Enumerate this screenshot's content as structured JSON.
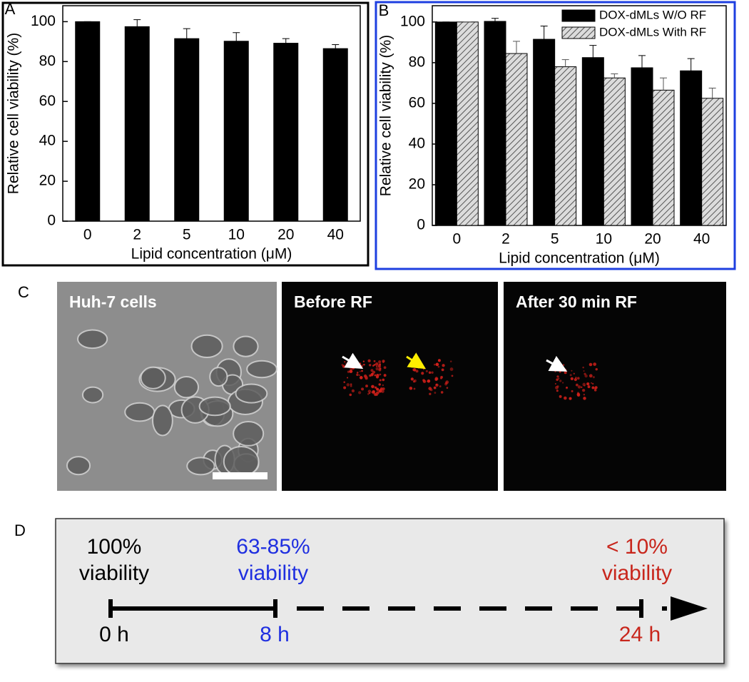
{
  "chart_data": [
    {
      "type": "bar",
      "panel_label": "A",
      "ylabel": "Relative cell viability (%)",
      "xlabel": "Lipid concentration (μM)",
      "categories": [
        "0",
        "2",
        "5",
        "10",
        "20",
        "40"
      ],
      "values": [
        100,
        97.5,
        91.5,
        90.2,
        89.2,
        86.5
      ],
      "errors": [
        0,
        3.5,
        5,
        4.3,
        2.3,
        2
      ],
      "color": "#000000",
      "ylim": [
        0,
        108
      ],
      "yticks": [
        0,
        20,
        40,
        60,
        80,
        100
      ]
    },
    {
      "type": "bar",
      "panel_label": "B",
      "ylabel": "Relative cell viability (%)",
      "xlabel": "Lipid concentration (μM)",
      "categories": [
        "0",
        "2",
        "5",
        "10",
        "20",
        "40"
      ],
      "series": [
        {
          "name": "DOX-dMLs W/O RF",
          "color": "#000000",
          "values": [
            100,
            100.3,
            91.5,
            82.5,
            77.5,
            76
          ],
          "errors": [
            0,
            1.5,
            6.5,
            6,
            6,
            6
          ]
        },
        {
          "name": "DOX-dMLs With RF",
          "color": "#888888",
          "hatch": true,
          "values": [
            100,
            84.5,
            78,
            72.5,
            66.5,
            62.5
          ],
          "errors": [
            0,
            6,
            3.5,
            2,
            6,
            5
          ]
        }
      ],
      "legend": "upper right",
      "ylim": [
        0,
        108
      ],
      "yticks": [
        0,
        20,
        40,
        60,
        80,
        100
      ]
    }
  ],
  "panel_c": {
    "label": "C",
    "images": [
      {
        "title": "Huh-7 cells"
      },
      {
        "title": "Before RF"
      },
      {
        "title": "After 30 min RF"
      }
    ]
  },
  "panel_d": {
    "label": "D",
    "milestones": [
      {
        "amount": "100%",
        "caption": "viability",
        "time": "0 h",
        "color": "#000000"
      },
      {
        "amount": "63-85%",
        "caption": "viability",
        "time": "8 h",
        "color": "#1f2fe0"
      },
      {
        "amount": "< 10%",
        "caption": "viability",
        "time": "24 h",
        "color": "#c8261c"
      }
    ]
  }
}
